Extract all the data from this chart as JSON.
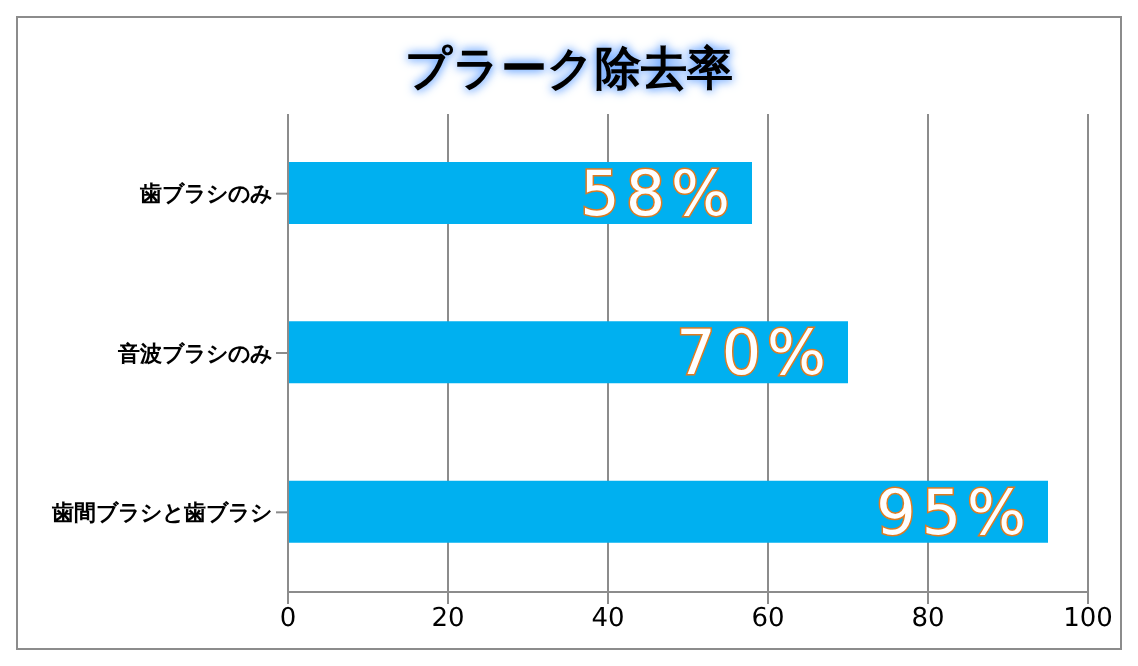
{
  "chart_data": {
    "type": "bar",
    "title": "プラーク除去率",
    "orientation": "horizontal",
    "categories": [
      "歯ブラシのみ",
      "音波ブラシのみ",
      "歯間ブラシと歯ブラシ"
    ],
    "values": [
      58,
      70,
      95
    ],
    "color": "#00b0f0",
    "value_labels": [
      "58%",
      "70%",
      "95%"
    ],
    "xlim": [
      0,
      100
    ],
    "xticks": [
      0,
      20,
      40,
      60,
      80,
      100
    ],
    "grid": "x"
  }
}
